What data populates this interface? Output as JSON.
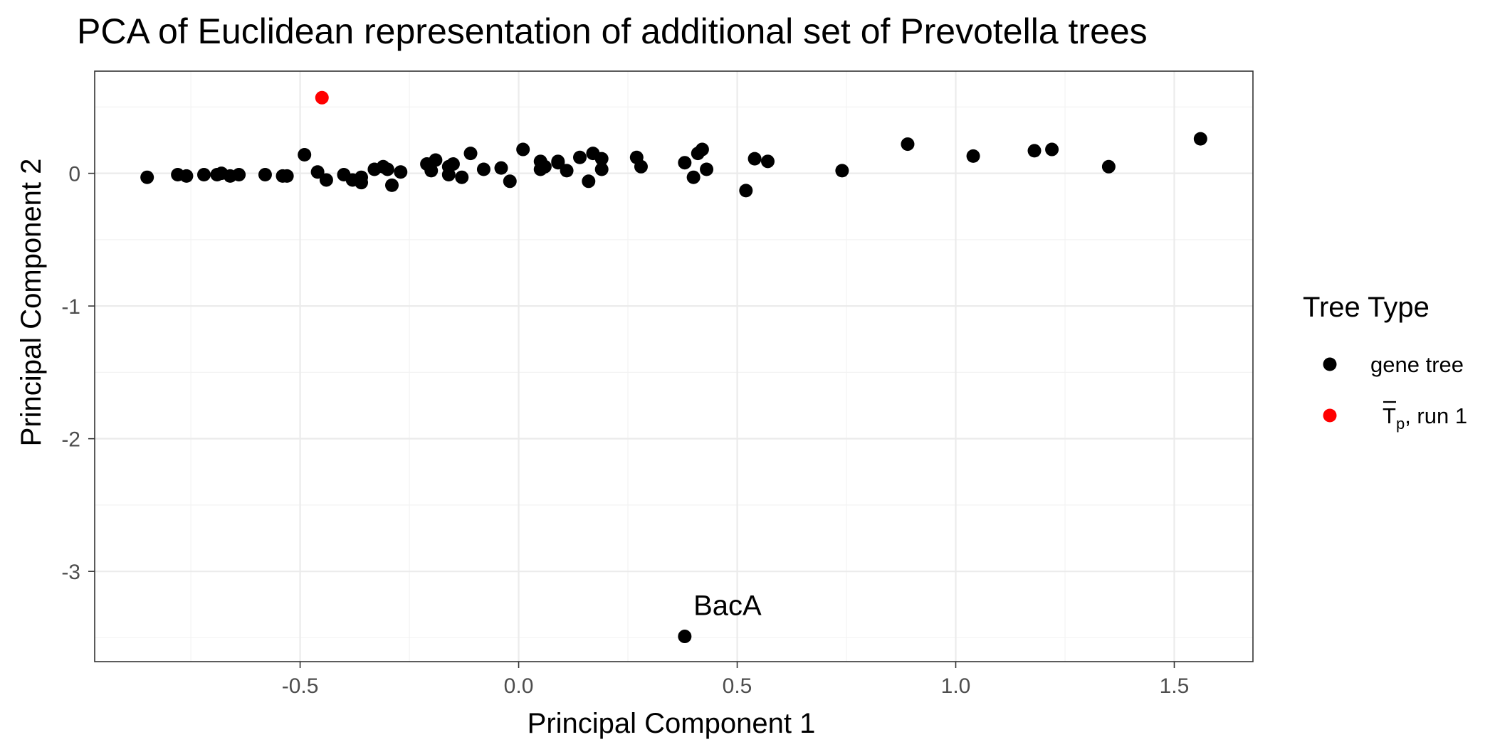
{
  "chart_data": {
    "type": "scatter",
    "title": "PCA of Euclidean representation of additional set of Prevotella trees",
    "xlabel": "Principal Component 1",
    "ylabel": "Principal Component 2",
    "xlim": [
      -0.97,
      1.68
    ],
    "ylim": [
      -3.68,
      0.77
    ],
    "x_ticks": [
      -0.5,
      0.0,
      0.5,
      1.0,
      1.5
    ],
    "x_tick_labels": [
      "-0.5",
      "0.0",
      "0.5",
      "1.0",
      "1.5"
    ],
    "y_ticks": [
      -3,
      -2,
      -1,
      0
    ],
    "y_tick_labels": [
      "-3",
      "-2",
      "-1",
      "0"
    ],
    "grid": true,
    "legend": {
      "title": "Tree Type",
      "placement": "right",
      "entries": [
        {
          "key": "gene",
          "label": "gene tree",
          "color": "#000000"
        },
        {
          "key": "tp",
          "label_base": "T",
          "label_sub": "p",
          "label_rest": ", run 1",
          "overline": true,
          "color": "#ff0000"
        }
      ]
    },
    "annotations": [
      {
        "text": "BacA",
        "x": 0.4,
        "y": -3.33
      }
    ],
    "series": [
      {
        "key": "gene",
        "color": "#000000",
        "points": [
          {
            "x": -0.85,
            "y": -0.03
          },
          {
            "x": -0.78,
            "y": -0.01
          },
          {
            "x": -0.76,
            "y": -0.02
          },
          {
            "x": -0.72,
            "y": -0.01
          },
          {
            "x": -0.69,
            "y": -0.01
          },
          {
            "x": -0.68,
            "y": 0.0
          },
          {
            "x": -0.66,
            "y": -0.02
          },
          {
            "x": -0.64,
            "y": -0.01
          },
          {
            "x": -0.58,
            "y": -0.01
          },
          {
            "x": -0.54,
            "y": -0.02
          },
          {
            "x": -0.53,
            "y": -0.02
          },
          {
            "x": -0.49,
            "y": 0.14
          },
          {
            "x": -0.46,
            "y": 0.01
          },
          {
            "x": -0.44,
            "y": -0.05
          },
          {
            "x": -0.4,
            "y": -0.01
          },
          {
            "x": -0.38,
            "y": -0.05
          },
          {
            "x": -0.36,
            "y": -0.07
          },
          {
            "x": -0.36,
            "y": -0.03
          },
          {
            "x": -0.33,
            "y": 0.03
          },
          {
            "x": -0.31,
            "y": 0.05
          },
          {
            "x": -0.3,
            "y": 0.03
          },
          {
            "x": -0.29,
            "y": -0.09
          },
          {
            "x": -0.27,
            "y": 0.01
          },
          {
            "x": -0.21,
            "y": 0.07
          },
          {
            "x": -0.2,
            "y": 0.02
          },
          {
            "x": -0.19,
            "y": 0.1
          },
          {
            "x": -0.16,
            "y": 0.05
          },
          {
            "x": -0.16,
            "y": -0.01
          },
          {
            "x": -0.15,
            "y": 0.07
          },
          {
            "x": -0.13,
            "y": -0.03
          },
          {
            "x": -0.11,
            "y": 0.15
          },
          {
            "x": -0.08,
            "y": 0.03
          },
          {
            "x": -0.04,
            "y": 0.04
          },
          {
            "x": -0.02,
            "y": -0.06
          },
          {
            "x": 0.01,
            "y": 0.18
          },
          {
            "x": 0.05,
            "y": 0.09
          },
          {
            "x": 0.05,
            "y": 0.03
          },
          {
            "x": 0.06,
            "y": 0.05
          },
          {
            "x": 0.09,
            "y": 0.09
          },
          {
            "x": 0.09,
            "y": 0.08
          },
          {
            "x": 0.11,
            "y": 0.02
          },
          {
            "x": 0.14,
            "y": 0.12
          },
          {
            "x": 0.16,
            "y": -0.06
          },
          {
            "x": 0.17,
            "y": 0.15
          },
          {
            "x": 0.19,
            "y": 0.11
          },
          {
            "x": 0.19,
            "y": 0.03
          },
          {
            "x": 0.27,
            "y": 0.12
          },
          {
            "x": 0.28,
            "y": 0.05
          },
          {
            "x": 0.38,
            "y": 0.08
          },
          {
            "x": 0.4,
            "y": -0.03
          },
          {
            "x": 0.41,
            "y": 0.15
          },
          {
            "x": 0.42,
            "y": 0.18
          },
          {
            "x": 0.43,
            "y": 0.03
          },
          {
            "x": 0.52,
            "y": -0.13
          },
          {
            "x": 0.54,
            "y": 0.11
          },
          {
            "x": 0.57,
            "y": 0.09
          },
          {
            "x": 0.74,
            "y": 0.02
          },
          {
            "x": 0.89,
            "y": 0.22
          },
          {
            "x": 1.04,
            "y": 0.13
          },
          {
            "x": 1.18,
            "y": 0.17
          },
          {
            "x": 1.22,
            "y": 0.18
          },
          {
            "x": 1.35,
            "y": 0.05
          },
          {
            "x": 1.56,
            "y": 0.26
          },
          {
            "x": 0.38,
            "y": -3.49
          }
        ]
      },
      {
        "key": "tp",
        "color": "#ff0000",
        "points": [
          {
            "x": -0.45,
            "y": 0.57
          }
        ]
      }
    ]
  }
}
